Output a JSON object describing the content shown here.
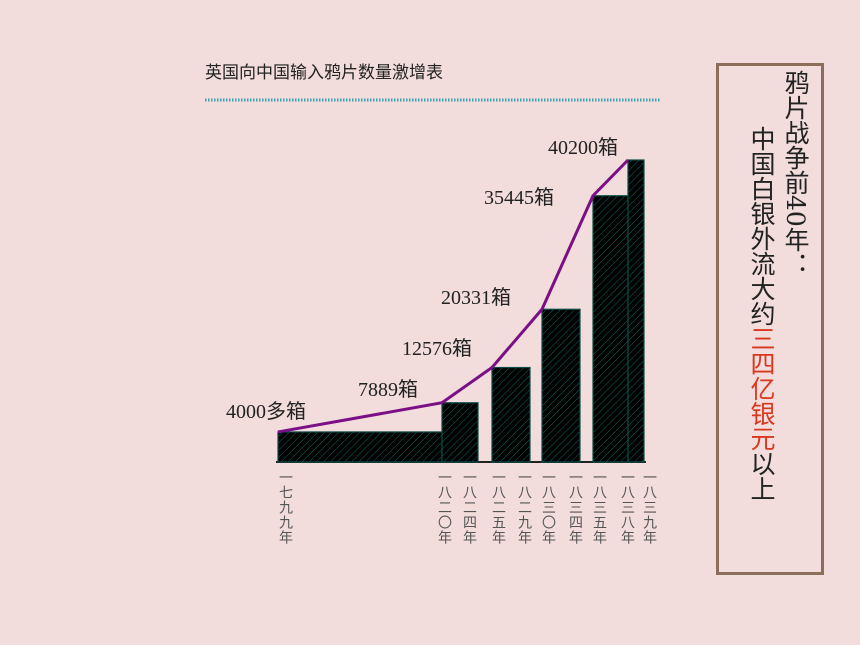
{
  "chart_data": {
    "type": "bar",
    "title": "英国向中国输入鸦片数量激增表",
    "values": [
      4000,
      7889,
      12576,
      20331,
      35445,
      40200
    ],
    "value_labels": [
      "4000多箱",
      "7889箱",
      "12576箱",
      "20331箱",
      "35445箱",
      "40200箱"
    ],
    "color": "#1aa898",
    "line_color": "#7a0f86",
    "x_labels": [
      "一七九九年",
      "一八二〇年",
      "一八二四年",
      "一八二五年",
      "一八二九年",
      "一八三〇年",
      "一八三四年",
      "一八三五年",
      "一八三八年",
      "一八三九年"
    ]
  },
  "side_note": {
    "line1": "鸦片战争前40年：",
    "line2": "中国白银外流大约",
    "highlight": "三四亿银元",
    "line2_end": "以上"
  }
}
